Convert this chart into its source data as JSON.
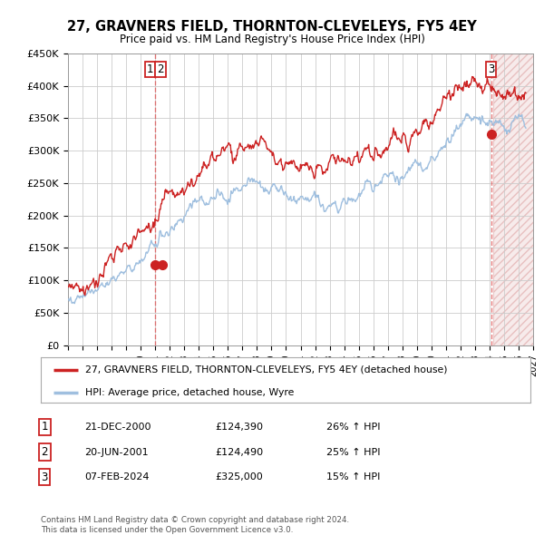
{
  "title": "27, GRAVNERS FIELD, THORNTON-CLEVELEYS, FY5 4EY",
  "subtitle": "Price paid vs. HM Land Registry's House Price Index (HPI)",
  "ylabel_ticks": [
    "£0",
    "£50K",
    "£100K",
    "£150K",
    "£200K",
    "£250K",
    "£300K",
    "£350K",
    "£400K",
    "£450K"
  ],
  "ytick_values": [
    0,
    50000,
    100000,
    150000,
    200000,
    250000,
    300000,
    350000,
    400000,
    450000
  ],
  "xlim_start": 1995.0,
  "xlim_end": 2027.0,
  "ylim": [
    0,
    450000
  ],
  "hpi_color": "#9fbfdf",
  "price_color": "#cc2222",
  "sale1_date": 2000.97,
  "sale1_price": 124390,
  "sale2_date": 2001.47,
  "sale2_price": 124490,
  "sale3_date": 2024.1,
  "sale3_price": 325000,
  "legend_label_price": "27, GRAVNERS FIELD, THORNTON-CLEVELEYS, FY5 4EY (detached house)",
  "legend_label_hpi": "HPI: Average price, detached house, Wyre",
  "table_rows": [
    [
      "1",
      "21-DEC-2000",
      "£124,390",
      "26% ↑ HPI"
    ],
    [
      "2",
      "20-JUN-2001",
      "£124,490",
      "25% ↑ HPI"
    ],
    [
      "3",
      "07-FEB-2024",
      "£325,000",
      "15% ↑ HPI"
    ]
  ],
  "footer": "Contains HM Land Registry data © Crown copyright and database right 2024.\nThis data is licensed under the Open Government Licence v3.0.",
  "grid_color": "#cccccc",
  "background_color": "#ffffff",
  "future_start": 2024.25,
  "sale12_dashed_x": 2001.0,
  "sale3_dashed_x": 2024.1
}
